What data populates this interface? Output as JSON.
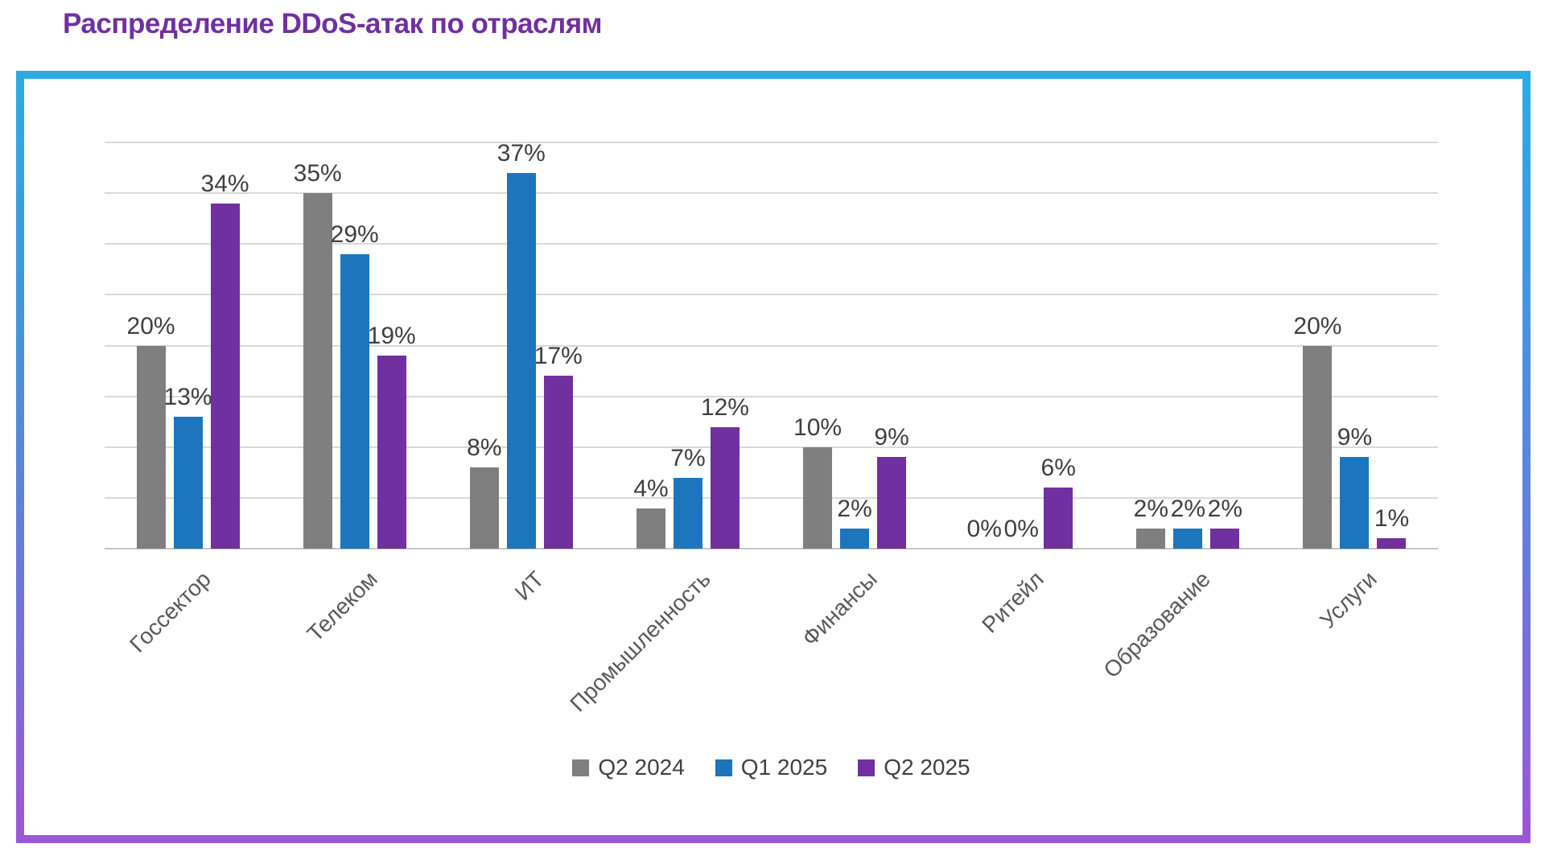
{
  "page": {
    "title": "Распределение DDoS-атак по отраслям"
  },
  "colors": {
    "title": "#7030a0",
    "frame_gradient_top": "#2aabe3",
    "frame_gradient_bottom": "#9b57d8",
    "gridline": "#d9d9d9",
    "axis_line": "#c6c6c6",
    "data_label": "#3f3f3f",
    "category_label": "#595959",
    "legend_text": "#404040"
  },
  "chart_data": {
    "type": "bar",
    "title": "Распределение DDoS-атак по отраслям",
    "categories": [
      "Госсектор",
      "Телеком",
      "ИТ",
      "Промышленность",
      "Финансы",
      "Ритейл",
      "Образование",
      "Услуги"
    ],
    "series": [
      {
        "name": "Q2 2024",
        "color": "#7f7f7f",
        "values": [
          20,
          35,
          8,
          4,
          10,
          0,
          2,
          20
        ]
      },
      {
        "name": "Q1 2025",
        "color": "#1d76bd",
        "values": [
          13,
          29,
          37,
          7,
          2,
          0,
          2,
          9
        ]
      },
      {
        "name": "Q2 2025",
        "color": "#7030a0",
        "values": [
          34,
          19,
          17,
          12,
          9,
          6,
          2,
          1
        ]
      }
    ],
    "value_suffix": "%",
    "xlabel": "",
    "ylabel": "",
    "ylim": [
      0,
      40
    ],
    "gridline_step": 5,
    "grid": "horizontal",
    "y_axis_labels": false,
    "data_labels": "outside-end",
    "legend_position": "bottom",
    "category_label_rotation_deg": -45
  }
}
